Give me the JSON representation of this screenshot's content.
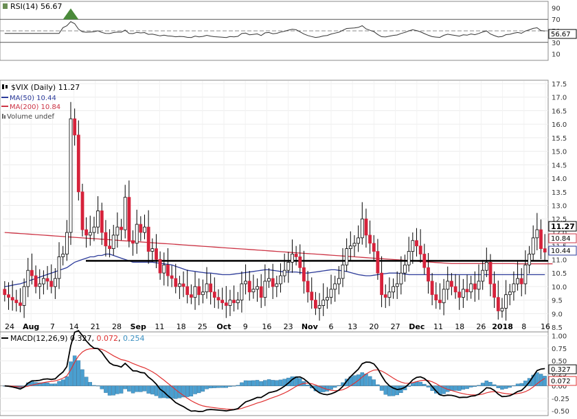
{
  "rsi": {
    "header": "RSI(14) 56.67",
    "ticks": [
      "90",
      "70",
      "50",
      "30",
      "10"
    ],
    "tick_values": [
      90,
      70,
      50,
      30,
      10
    ],
    "ylim": [
      0,
      100
    ],
    "reference_lines": [
      70,
      50,
      30
    ],
    "last_label": "56.67",
    "overbought_fill_color": "#4a8a3a"
  },
  "price": {
    "header_symbol": "$VIX (Daily) 11.27",
    "ma50_label": "MA(50) 10.44",
    "ma200_label": "MA(200) 10.84",
    "volume_label": "Volume undef",
    "ticks": [
      "17.5",
      "17.0",
      "16.5",
      "16.0",
      "15.5",
      "15.0",
      "14.5",
      "14.0",
      "13.5",
      "13.0",
      "12.5",
      "12.0",
      "11.5",
      "11.0",
      "10.5",
      "10.0",
      "9.5",
      "9.0",
      "8.5"
    ],
    "tick_values": [
      17.5,
      17.0,
      16.5,
      16.0,
      15.5,
      15.0,
      14.5,
      14.0,
      13.5,
      13.0,
      12.5,
      12.0,
      11.5,
      11.0,
      10.5,
      10.0,
      9.5,
      9.0,
      8.5
    ],
    "ylim": [
      8.35,
      17.6
    ],
    "last_price_label": "11.27",
    "ma200_last_label": "10.84",
    "ma50_last_label": "10.44",
    "horizontal_line_value": 10.95,
    "colors": {
      "up": "#ffffff",
      "down": "#d6223b",
      "ma50": "#2b3a9a",
      "ma200": "#cc3344",
      "line": "#000000"
    }
  },
  "x_axis": {
    "labels": [
      "24",
      "Aug",
      "7",
      "14",
      "21",
      "28",
      "Sep",
      "11",
      "18",
      "25",
      "Oct",
      "9",
      "16",
      "23",
      "Nov",
      "6",
      "13",
      "20",
      "27",
      "Dec",
      "11",
      "18",
      "26",
      "2018",
      "8",
      "16"
    ],
    "bold": [
      "Aug",
      "Sep",
      "Oct",
      "Nov",
      "Dec",
      "2018"
    ]
  },
  "macd": {
    "header": "MACD(12,26,9) 0.327, 0.072, 0.254",
    "header_parts": {
      "label": "MACD(12,26,9)",
      "macd": "0.327",
      "signal": "0.072",
      "hist": "0.254"
    },
    "ticks": [
      "1.00",
      "0.75",
      "0.50",
      "0.25",
      "0.00",
      "-0.25",
      "-0.50"
    ],
    "tick_values": [
      1.0,
      0.75,
      0.5,
      0.25,
      0.0,
      -0.25,
      -0.5
    ],
    "ylim": [
      -0.58,
      1.05
    ],
    "macd_last_label": "0.327",
    "signal_last_label": "0.072",
    "colors": {
      "macd": "#000000",
      "signal": "#e03030",
      "hist": "#4a9fd0"
    }
  },
  "chart_data": {
    "type": "candlestick",
    "title": "$VIX (Daily) 11.27",
    "indicators": [
      "RSI(14)",
      "MA(50)",
      "MA(200)",
      "MACD(12,26,9)"
    ],
    "close": [
      9.7,
      9.6,
      9.5,
      9.4,
      9.3,
      10.0,
      10.6,
      10.4,
      10.0,
      10.1,
      10.3,
      10.2,
      10.0,
      10.3,
      11.1,
      11.2,
      12.0,
      16.2,
      15.6,
      13.5,
      12.1,
      11.9,
      12.0,
      12.2,
      12.8,
      12.0,
      11.5,
      11.4,
      11.9,
      12.2,
      12.1,
      13.3,
      11.7,
      11.6,
      12.3,
      12.0,
      12.2,
      11.3,
      11.4,
      11.0,
      10.5,
      10.8,
      10.4,
      10.3,
      10.0,
      10.1,
      10.0,
      9.7,
      9.6,
      10.0,
      9.7,
      9.8,
      10.1,
      9.8,
      9.6,
      9.5,
      9.4,
      9.3,
      9.5,
      9.4,
      9.5,
      10.1,
      10.2,
      9.8,
      9.9,
      10.0,
      9.6,
      10.2,
      10.3,
      10.0,
      10.1,
      10.4,
      10.6,
      10.9,
      11.2,
      11.1,
      10.7,
      10.2,
      9.8,
      9.5,
      9.2,
      9.3,
      9.5,
      9.6,
      9.9,
      10.1,
      10.3,
      10.8,
      11.4,
      11.5,
      11.6,
      11.8,
      12.5,
      11.9,
      11.6,
      11.3,
      10.5,
      9.7,
      9.6,
      9.8,
      10.0,
      10.1,
      10.5,
      10.8,
      11.3,
      11.7,
      11.5,
      11.2,
      10.7,
      10.2,
      9.7,
      9.5,
      9.4,
      9.9,
      10.2,
      10.0,
      9.8,
      9.6,
      9.9,
      9.8,
      10.1,
      9.9,
      10.2,
      10.6,
      10.9,
      10.1,
      9.6,
      9.1,
      9.2,
      9.7,
      9.8,
      10.1,
      10.3,
      10.1,
      10.8,
      11.2,
      11.8,
      12.1,
      11.4,
      11.27
    ],
    "ma50": [
      10.0,
      10.02,
      10.05,
      10.08,
      10.1,
      10.15,
      10.2,
      10.25,
      10.3,
      10.35,
      10.4,
      10.45,
      10.5,
      10.55,
      10.6,
      10.65,
      10.7,
      10.8,
      10.9,
      10.95,
      11.0,
      11.05,
      11.1,
      11.1,
      11.15,
      11.15,
      11.2,
      11.2,
      11.15,
      11.1,
      11.05,
      11.0,
      10.95,
      10.9,
      10.9,
      10.9,
      10.9,
      10.9,
      10.9,
      10.88,
      10.86,
      10.84,
      10.82,
      10.8,
      10.75,
      10.7,
      10.65,
      10.6,
      10.58,
      10.56,
      10.54,
      10.52,
      10.5,
      10.5,
      10.48,
      10.46,
      10.44,
      10.44,
      10.44,
      10.46,
      10.48,
      10.5,
      10.52,
      10.54,
      10.56,
      10.58,
      10.6,
      10.62,
      10.62,
      10.6,
      10.58,
      10.56,
      10.54,
      10.54,
      10.54,
      10.54,
      10.52,
      10.5,
      10.5,
      10.52,
      10.54,
      10.56,
      10.58,
      10.6,
      10.62,
      10.62,
      10.6,
      10.58,
      10.56,
      10.52,
      10.48,
      10.44,
      10.42,
      10.4,
      10.4,
      10.42,
      10.44,
      10.46,
      10.48,
      10.5,
      10.5,
      10.5,
      10.48,
      10.46,
      10.44,
      10.44,
      10.44,
      10.44,
      10.44,
      10.44,
      10.44,
      10.44,
      10.44,
      10.44,
      10.44,
      10.44,
      10.44,
      10.44,
      10.44,
      10.44,
      10.44,
      10.44,
      10.44,
      10.44,
      10.44,
      10.44,
      10.44,
      10.44,
      10.44,
      10.44,
      10.44,
      10.44,
      10.44,
      10.44,
      10.44,
      10.44,
      10.44,
      10.44,
      10.44,
      10.44
    ],
    "ma200": [
      12.0,
      11.99,
      11.98,
      11.97,
      11.96,
      11.95,
      11.94,
      11.93,
      11.92,
      11.91,
      11.9,
      11.89,
      11.88,
      11.87,
      11.86,
      11.85,
      11.84,
      11.83,
      11.82,
      11.81,
      11.8,
      11.79,
      11.78,
      11.77,
      11.76,
      11.75,
      11.74,
      11.73,
      11.72,
      11.71,
      11.7,
      11.69,
      11.68,
      11.67,
      11.66,
      11.65,
      11.64,
      11.63,
      11.62,
      11.61,
      11.6,
      11.59,
      11.58,
      11.57,
      11.56,
      11.55,
      11.54,
      11.53,
      11.52,
      11.51,
      11.5,
      11.49,
      11.48,
      11.47,
      11.46,
      11.45,
      11.44,
      11.43,
      11.42,
      11.41,
      11.4,
      11.39,
      11.38,
      11.37,
      11.36,
      11.35,
      11.34,
      11.33,
      11.32,
      11.31,
      11.3,
      11.29,
      11.28,
      11.27,
      11.26,
      11.25,
      11.24,
      11.23,
      11.22,
      11.21,
      11.2,
      11.19,
      11.18,
      11.17,
      11.16,
      11.15,
      11.14,
      11.13,
      11.12,
      11.11,
      11.1,
      11.09,
      11.08,
      11.07,
      11.06,
      11.05,
      11.04,
      11.03,
      11.02,
      11.01,
      11.0,
      10.99,
      10.98,
      10.97,
      10.96,
      10.95,
      10.94,
      10.93,
      10.92,
      10.91,
      10.9,
      10.89,
      10.88,
      10.87,
      10.86,
      10.85,
      10.85,
      10.85,
      10.85,
      10.85,
      10.85,
      10.85,
      10.85,
      10.85,
      10.85,
      10.85,
      10.85,
      10.85,
      10.85,
      10.85,
      10.85,
      10.85,
      10.84,
      10.84,
      10.84,
      10.84,
      10.84,
      10.84,
      10.84,
      10.84,
      10.84,
      10.84
    ]
  }
}
